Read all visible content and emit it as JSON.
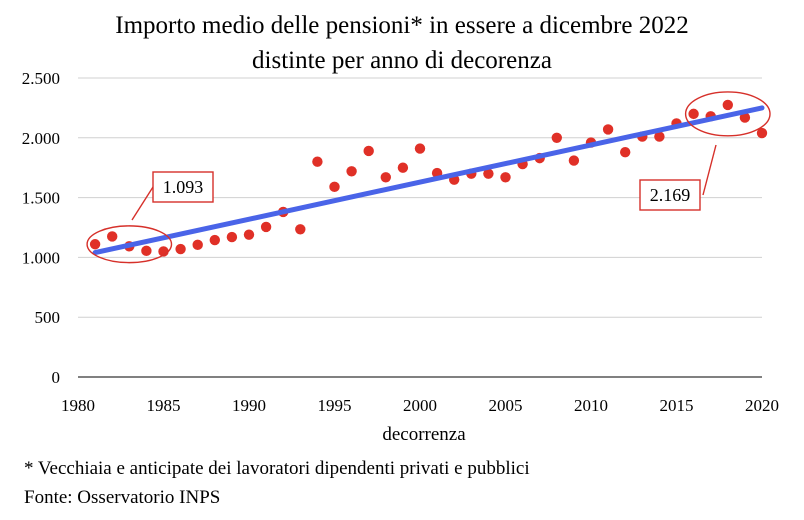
{
  "chart_data": {
    "type": "scatter",
    "title": [
      "Importo medio delle pensioni* in essere a dicembre 2022",
      "distinte per anno di decorenza"
    ],
    "xlabel": "decorrenza",
    "ylabel": "",
    "xlim": [
      1980,
      2020
    ],
    "ylim": [
      0,
      2500
    ],
    "x_ticks": [
      1980,
      1985,
      1990,
      1995,
      2000,
      2005,
      2010,
      2015,
      2020
    ],
    "y_ticks": [
      0,
      500,
      1000,
      1500,
      2000,
      2500
    ],
    "y_tick_labels": [
      "0",
      "500",
      "1.000",
      "1.500",
      "2.000",
      "2.500"
    ],
    "grid": "horizontal",
    "series": [
      {
        "marker_color": "#e03027",
        "x": [
          1981,
          1982,
          1983,
          1984,
          1985,
          1986,
          1987,
          1988,
          1989,
          1990,
          1991,
          1992,
          1993,
          1994,
          1995,
          1996,
          1997,
          1998,
          1999,
          2000,
          2001,
          2002,
          2003,
          2004,
          2005,
          2006,
          2007,
          2008,
          2009,
          2010,
          2011,
          2012,
          2013,
          2014,
          2015,
          2016,
          2017,
          2018,
          2019,
          2020
        ],
        "y": [
          1110,
          1175,
          1093,
          1055,
          1050,
          1070,
          1105,
          1145,
          1170,
          1190,
          1255,
          1380,
          1235,
          1800,
          1590,
          1720,
          1890,
          1670,
          1750,
          1910,
          1705,
          1650,
          1700,
          1700,
          1670,
          1780,
          1830,
          2000,
          1810,
          1960,
          2070,
          1880,
          2010,
          2010,
          2120,
          2200,
          2180,
          2275,
          2169,
          2040
        ]
      }
    ],
    "trendline": {
      "color": "#4a64e8",
      "x": [
        1981,
        2020
      ],
      "y": [
        1040,
        2250
      ]
    },
    "annotations": [
      {
        "text": "1.093",
        "x": 1983,
        "y": 1093,
        "ellipse_x": [
          1981,
          1985
        ],
        "ellipse_y": [
          1040,
          1180
        ]
      },
      {
        "text": "2.169",
        "x": 2018,
        "y": 2169,
        "ellipse_x": [
          2016,
          2020
        ],
        "ellipse_y": [
          2100,
          2300
        ]
      }
    ],
    "colors": {
      "points": "#e03027",
      "trend": "#4a64e8",
      "callout": "#d6302a",
      "grid": "#d0d0d0"
    }
  },
  "footnotes": {
    "note": "* Vecchiaia e anticipate dei lavoratori dipendenti privati e pubblici",
    "source": "Fonte: Osservatorio INPS"
  }
}
